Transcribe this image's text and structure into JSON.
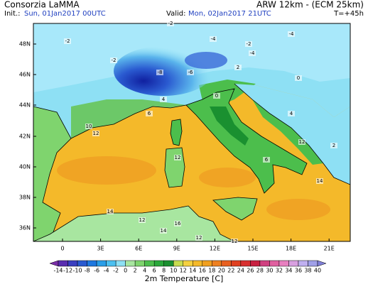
{
  "header": {
    "provider": "Consorzia LaMMA",
    "init_label": "Init.:",
    "init_value": "Sun, 01Jan2017 00UTC",
    "model": "ARW 12km - (ECM 25km)",
    "valid_label": "Valid:",
    "valid_value": "Mon, 02Jan2017 21UTC",
    "lead_time": "T=+45h"
  },
  "axes": {
    "lat_labels": [
      "48N",
      "46N",
      "44N",
      "42N",
      "40N",
      "38N",
      "36N"
    ],
    "lon_labels": [
      "0",
      "3E",
      "6E",
      "9E",
      "12E",
      "15E",
      "18E",
      "21E"
    ]
  },
  "map": {
    "labels": [
      "-2",
      "-2",
      "-4",
      "-2",
      "-4",
      "-4",
      "-6",
      "-8",
      "-2",
      "0",
      "2",
      "4",
      "6",
      "10",
      "12",
      "12",
      "12",
      "14",
      "14",
      "16",
      "12",
      "14",
      "6",
      "4",
      "2",
      "0",
      "12",
      "12"
    ]
  },
  "colorbar": {
    "title": "2m Temperature [C]",
    "labels": [
      "-14",
      "-12",
      "-10",
      "-8",
      "-6",
      "-4",
      "-2",
      "0",
      "2",
      "4",
      "6",
      "8",
      "10",
      "12",
      "14",
      "16",
      "18",
      "20",
      "22",
      "24",
      "26",
      "28",
      "30",
      "32",
      "34",
      "36",
      "38",
      "40"
    ]
  }
}
